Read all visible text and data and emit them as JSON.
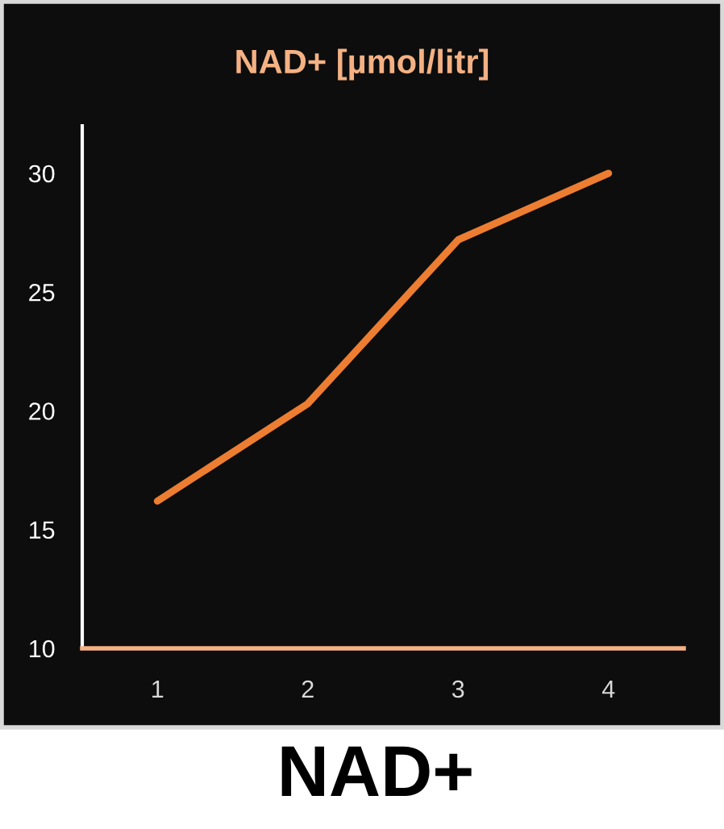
{
  "chart_data": {
    "type": "line",
    "title": "NAD+ [µmol/litr]",
    "annotations": [
      "NAD+"
    ],
    "categories": [
      "1",
      "2",
      "3",
      "4"
    ],
    "series": [
      {
        "color": "#ed7d31",
        "values": [
          16.2,
          20.3,
          27.2,
          30.0
        ]
      }
    ],
    "ylim": [
      10,
      32
    ],
    "yticks": [
      10,
      15,
      20,
      25,
      30
    ],
    "grid": false,
    "legend": false,
    "marker": "none",
    "line_style": "solid"
  }
}
